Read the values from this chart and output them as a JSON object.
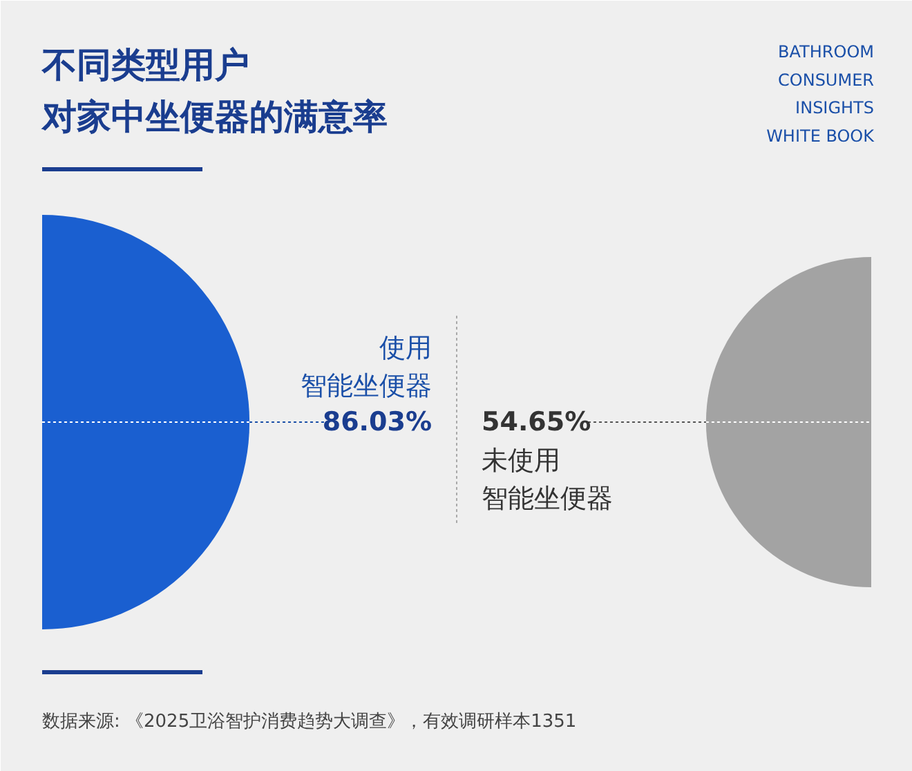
{
  "chart_data": {
    "type": "other",
    "title": "不同类型用户对家中坐便器的满意率",
    "subtitle": "BATHROOM\nCONSUMER\nINSIGHTS\nWHITE BOOK",
    "categories": [
      "使用智能坐便器",
      "未使用智能坐便器"
    ],
    "values": [
      86.03,
      54.65
    ],
    "value_labels": [
      "86.03%",
      "54.65%"
    ],
    "colors": [
      "#1a5fd0",
      "#a3a3a3"
    ],
    "annotations": [
      "数据来源: 《2025卫浴智护消费趋势大调查》，有效调研样本1351"
    ]
  }
}
